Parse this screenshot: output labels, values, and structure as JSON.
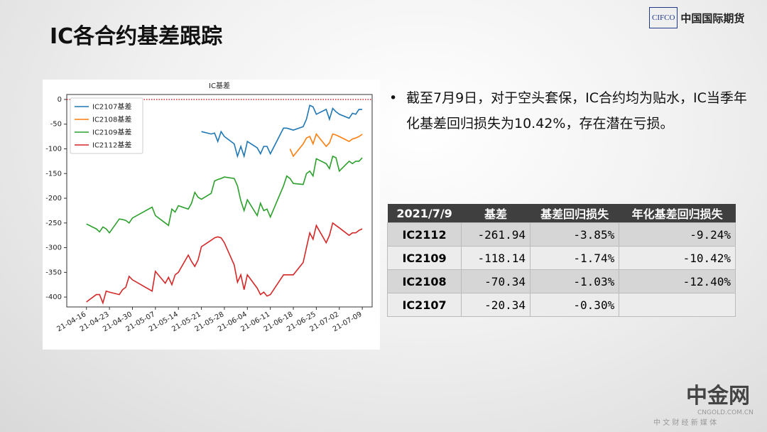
{
  "header": {
    "title": "IC各合约基差跟踪",
    "logo_mark": "CIFCO",
    "logo_text": "中国国际期货"
  },
  "chart_data": {
    "type": "line",
    "title": "IC基差",
    "x": [
      "21-04-16",
      "21-04-19",
      "21-04-20",
      "21-04-21",
      "21-04-22",
      "21-04-23",
      "21-04-26",
      "21-04-27",
      "21-04-28",
      "21-04-29",
      "21-04-30",
      "21-05-06",
      "21-05-07",
      "21-05-10",
      "21-05-11",
      "21-05-12",
      "21-05-13",
      "21-05-14",
      "21-05-17",
      "21-05-18",
      "21-05-19",
      "21-05-20",
      "21-05-21",
      "21-05-24",
      "21-05-25",
      "21-05-26",
      "21-05-27",
      "21-05-28",
      "21-05-31",
      "21-06-01",
      "21-06-02",
      "21-06-03",
      "21-06-04",
      "21-06-07",
      "21-06-08",
      "21-06-09",
      "21-06-10",
      "21-06-11",
      "21-06-15",
      "21-06-16",
      "21-06-17",
      "21-06-18",
      "21-06-21",
      "21-06-22",
      "21-06-23",
      "21-06-24",
      "21-06-25",
      "21-06-28",
      "21-06-29",
      "21-06-30",
      "21-07-01",
      "21-07-02",
      "21-07-05",
      "21-07-06",
      "21-07-07",
      "21-07-08",
      "21-07-09"
    ],
    "series": [
      {
        "name": "IC2107基差",
        "color": "#1f77b4",
        "values": [
          null,
          null,
          null,
          null,
          null,
          null,
          null,
          null,
          null,
          null,
          null,
          null,
          null,
          null,
          null,
          null,
          null,
          null,
          null,
          null,
          null,
          null,
          -65,
          -70,
          -68,
          -85,
          -65,
          -75,
          -90,
          -115,
          -95,
          -115,
          -85,
          -98,
          -110,
          -95,
          -95,
          -110,
          -58,
          -58,
          -60,
          -62,
          -55,
          -40,
          -12,
          -15,
          -30,
          -20,
          -40,
          -18,
          -25,
          -30,
          -38,
          -28,
          -30,
          -20,
          -20.34
        ]
      },
      {
        "name": "IC2108基差",
        "color": "#ff7f0e",
        "values": [
          null,
          null,
          null,
          null,
          null,
          null,
          null,
          null,
          null,
          null,
          null,
          null,
          null,
          null,
          null,
          null,
          null,
          null,
          null,
          null,
          null,
          null,
          null,
          null,
          null,
          null,
          null,
          null,
          null,
          null,
          null,
          null,
          null,
          null,
          null,
          null,
          null,
          null,
          null,
          null,
          -100,
          -115,
          -90,
          -78,
          -75,
          -90,
          -70,
          -95,
          -88,
          -70,
          -72,
          -75,
          -85,
          -80,
          -78,
          -75,
          -70.34
        ]
      },
      {
        "name": "IC2109基差",
        "color": "#2ca02c",
        "values": [
          -252,
          -262,
          -268,
          -258,
          -262,
          -270,
          -242,
          -243,
          -245,
          -250,
          -240,
          -218,
          -235,
          -250,
          -255,
          -222,
          -228,
          -215,
          -222,
          -210,
          -188,
          -198,
          -202,
          -190,
          -165,
          -162,
          -160,
          -157,
          -160,
          -175,
          -205,
          -225,
          -203,
          -235,
          -210,
          -225,
          -222,
          -238,
          -175,
          -155,
          -160,
          -170,
          -172,
          -150,
          -145,
          -155,
          -120,
          -130,
          -140,
          -115,
          -118,
          -145,
          -125,
          -130,
          -125,
          -125,
          -118.14
        ]
      },
      {
        "name": "IC2112基差",
        "color": "#d62728",
        "values": [
          -410,
          -395,
          -395,
          -412,
          -388,
          -390,
          -395,
          -385,
          -380,
          -358,
          -365,
          -388,
          -348,
          -372,
          -360,
          -375,
          -355,
          -350,
          -315,
          -328,
          -338,
          -325,
          -298,
          -285,
          -280,
          -278,
          -280,
          -290,
          -335,
          -370,
          -355,
          -385,
          -355,
          -382,
          -395,
          -390,
          -398,
          -395,
          -355,
          -355,
          -355,
          -355,
          -330,
          -300,
          -270,
          -283,
          -255,
          -290,
          -275,
          -250,
          -255,
          -260,
          -275,
          -270,
          -270,
          -265,
          -261.94
        ]
      }
    ],
    "xlim": [
      "21-04-10",
      "21-07-12"
    ],
    "xticks": [
      "21-04-16",
      "21-04-23",
      "21-04-30",
      "21-05-07",
      "21-05-14",
      "21-05-21",
      "21-05-28",
      "21-06-04",
      "21-06-11",
      "21-06-18",
      "21-06-25",
      "21-07-02",
      "21-07-09"
    ],
    "ylim": [
      -420,
      10
    ],
    "yticks": [
      0,
      {
        "value": -50,
        "label": "-50"
      },
      {
        "value": -100,
        "label": "-100"
      },
      {
        "value": -150,
        "label": "-150"
      },
      {
        "value": -200,
        "label": "-200"
      },
      {
        "value": -250,
        "label": "-250"
      },
      {
        "value": -300,
        "label": "-300"
      },
      {
        "value": -350,
        "label": "-350"
      },
      {
        "value": -400,
        "label": "-400"
      }
    ],
    "reference_line": {
      "value": 0,
      "color": "#d62728"
    },
    "legend": "upper left",
    "grid": false
  },
  "bullet": "截至7月9日，对于空头套保，IC合约均为贴水，IC当季年化基差回归损失为10.42%，存在潜在亏损。",
  "table": {
    "header": [
      "2021/7/9",
      "基差",
      "基差回归损失",
      "年化基差回归损失"
    ],
    "rows": [
      [
        "IC2112",
        "-261.94",
        "-3.85%",
        "-9.24%"
      ],
      [
        "IC2109",
        "-118.14",
        "-1.74%",
        "-10.42%"
      ],
      [
        "IC2108",
        "-70.34",
        "-1.03%",
        "-12.40%"
      ],
      [
        "IC2107",
        "-20.34",
        "-0.30%"
      ]
    ]
  },
  "watermark": {
    "name": "中金网",
    "site": "CNGOLD.COM.CN",
    "slogan": "中 文 财 经 新 媒 体"
  }
}
